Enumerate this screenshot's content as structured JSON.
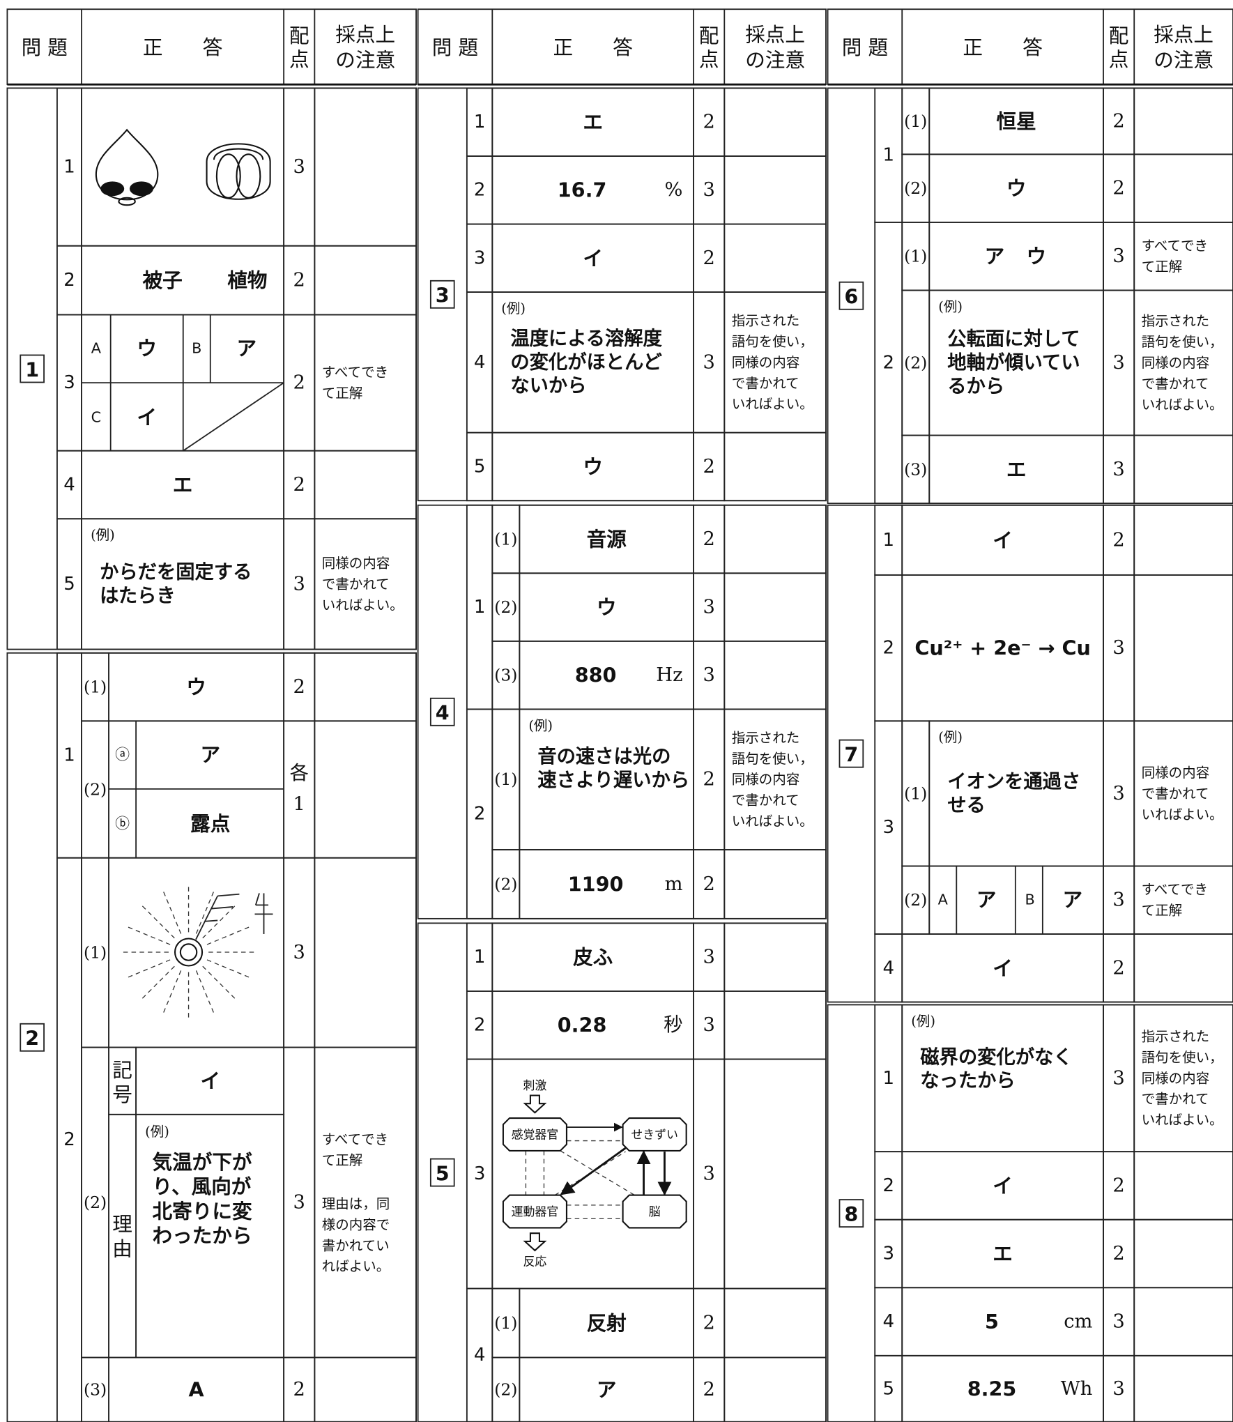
{
  "header": {
    "question": "問 題",
    "answer": "正　　答",
    "points": [
      "配",
      "点"
    ],
    "notes": [
      "採点上",
      "の注意"
    ]
  },
  "q1": {
    "label": "1",
    "p1": {
      "no": "1",
      "points": 3
    },
    "p2": {
      "no": "2",
      "words": [
        "被子",
        "植物"
      ],
      "points": 2
    },
    "p3": {
      "no": "3",
      "grid": [
        [
          "A",
          "ウ"
        ],
        [
          "B",
          "ア"
        ],
        [
          "C",
          "イ"
        ]
      ],
      "points": 2,
      "note": [
        "すべてでき",
        "て正解"
      ]
    },
    "p4": {
      "no": "4",
      "answer": "エ",
      "points": 2
    },
    "p5": {
      "no": "5",
      "example": "(例)",
      "answer": [
        "からだを固定する",
        "はたらき"
      ],
      "points": 3,
      "note": [
        "同様の内容",
        "で書かれて",
        "いればよい。"
      ]
    }
  },
  "q2": {
    "label": "2",
    "p1": {
      "no": "1",
      "s1": {
        "no": "(1)",
        "answer": "ウ",
        "points": 2
      },
      "s2": {
        "no": "(2)",
        "a": [
          "ⓐ",
          "ア"
        ],
        "b": [
          "ⓑ",
          "露点"
        ],
        "points": [
          "各",
          1
        ]
      }
    },
    "p2": {
      "no": "2",
      "s1": {
        "no": "(1)",
        "points": 3
      },
      "s2": {
        "no": "(2)",
        "symbol_label": [
          "記",
          "号"
        ],
        "symbol": "イ",
        "reason_label": [
          "理",
          "由"
        ],
        "example": "(例)",
        "reason": [
          "気温が下が",
          "り、風向が",
          "北寄りに変",
          "わったから"
        ],
        "points": 3,
        "note": [
          "すべてでき",
          "て正解"
        ],
        "note2": [
          "理由は，同",
          "様の内容で",
          "書かれてい",
          "ればよい。"
        ]
      },
      "s3": {
        "no": "(3)",
        "answer": "A",
        "points": 2
      }
    }
  },
  "q3": {
    "label": "3",
    "p1": {
      "no": "1",
      "answer": "エ",
      "points": 2
    },
    "p2": {
      "no": "2",
      "value": 16.7,
      "unit": "%",
      "points": 3
    },
    "p3": {
      "no": "3",
      "answer": "イ",
      "points": 2
    },
    "p4": {
      "no": "4",
      "example": "(例)",
      "answer": [
        "温度による溶解度",
        "の変化がほとんど",
        "ないから"
      ],
      "points": 3,
      "note": [
        "指示された",
        "語句を使い，",
        "同様の内容",
        "で書かれて",
        "いればよい。"
      ]
    },
    "p5": {
      "no": "5",
      "answer": "ウ",
      "points": 2
    }
  },
  "q4": {
    "label": "4",
    "p1": {
      "no": "1",
      "s1": {
        "no": "(1)",
        "answer": "音源",
        "points": 2
      },
      "s2": {
        "no": "(2)",
        "answer": "ウ",
        "points": 3
      },
      "s3": {
        "no": "(3)",
        "value": 880,
        "unit": "Hz",
        "points": 3
      }
    },
    "p2": {
      "no": "2",
      "s1": {
        "no": "(1)",
        "example": "(例)",
        "answer": [
          "音の速さは光の",
          "速さより遅いから"
        ],
        "points": 2,
        "note": [
          "指示された",
          "語句を使い，",
          "同様の内容",
          "で書かれて",
          "いればよい。"
        ]
      },
      "s2": {
        "no": "(2)",
        "value": 1190,
        "unit": "m",
        "points": 2
      }
    }
  },
  "q5": {
    "label": "5",
    "p1": {
      "no": "1",
      "answer": "皮ふ",
      "points": 3
    },
    "p2": {
      "no": "2",
      "value": 0.28,
      "unit": "秒",
      "points": 3
    },
    "p3": {
      "no": "3",
      "diagram": {
        "stimulus": "刺激",
        "sense": "感覚器官",
        "spinal": "せきずい",
        "motor": "運動器官",
        "brain": "脳",
        "response": "反応"
      },
      "points": 3
    },
    "p4": {
      "no": "4",
      "s1": {
        "no": "(1)",
        "answer": "反射",
        "points": 2
      },
      "s2": {
        "no": "(2)",
        "answer": "ア",
        "points": 2
      }
    }
  },
  "q6": {
    "label": "6",
    "p1": {
      "no": "1",
      "s1": {
        "no": "(1)",
        "answer": "恒星",
        "points": 2
      },
      "s2": {
        "no": "(2)",
        "answer": "ウ",
        "points": 2
      }
    },
    "p2": {
      "no": "2",
      "s1": {
        "no": "(1)",
        "words": [
          "ア",
          "ウ"
        ],
        "points": 3,
        "note": [
          "すべてでき",
          "て正解"
        ]
      },
      "s2": {
        "no": "(2)",
        "example": "(例)",
        "answer": [
          "公転面に対して",
          "地軸が傾いてい",
          "るから"
        ],
        "points": 3,
        "note": [
          "指示された",
          "語句を使い，",
          "同様の内容",
          "で書かれて",
          "いればよい。"
        ]
      },
      "s3": {
        "no": "(3)",
        "answer": "エ",
        "points": 3
      }
    }
  },
  "q7": {
    "label": "7",
    "p1": {
      "no": "1",
      "answer": "イ",
      "points": 2
    },
    "p2": {
      "no": "2",
      "answer": "Cu²⁺ + 2e⁻ → Cu",
      "points": 3
    },
    "p3": {
      "no": "3",
      "s1": {
        "no": "(1)",
        "example": "(例)",
        "answer": [
          "イオンを通過さ",
          "せる"
        ],
        "points": 3,
        "note": [
          "同様の内容",
          "で書かれて",
          "いればよい。"
        ]
      },
      "s2": {
        "no": "(2)",
        "grid": [
          [
            "A",
            "ア"
          ],
          [
            "B",
            "ア"
          ]
        ],
        "points": 3,
        "note": [
          "すべてでき",
          "て正解"
        ]
      }
    },
    "p4": {
      "no": "4",
      "answer": "イ",
      "points": 2
    }
  },
  "q8": {
    "label": "8",
    "p1": {
      "no": "1",
      "example": "(例)",
      "answer": [
        "磁界の変化がなく",
        "なったから"
      ],
      "points": 3,
      "note": [
        "指示された",
        "語句を使い，",
        "同様の内容",
        "で書かれて",
        "いればよい。"
      ]
    },
    "p2": {
      "no": "2",
      "answer": "イ",
      "points": 2
    },
    "p3": {
      "no": "3",
      "answer": "エ",
      "points": 2
    },
    "p4": {
      "no": "4",
      "value": 5,
      "unit": "cm",
      "points": 3
    },
    "p5": {
      "no": "5",
      "value": 8.25,
      "unit": "Wh",
      "points": 3
    }
  }
}
